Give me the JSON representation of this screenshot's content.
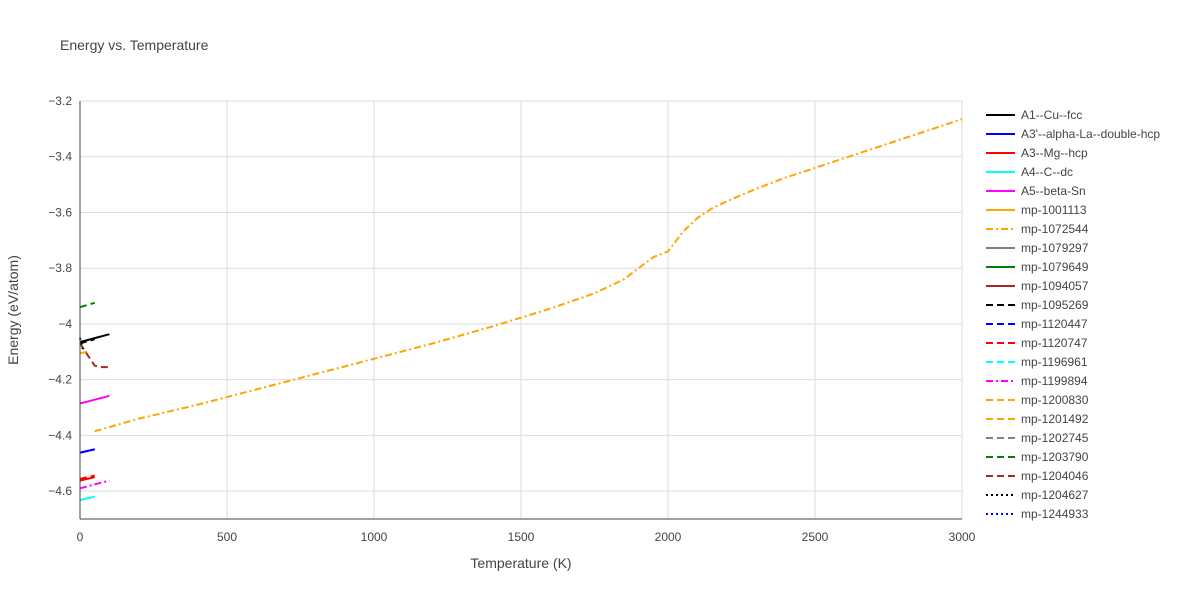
{
  "chart_data": {
    "type": "line",
    "title": "Energy vs. Temperature",
    "xlabel": "Temperature (K)",
    "ylabel": "Energy (eV/atom)",
    "xlim": [
      0,
      3000
    ],
    "ylim": [
      -4.7,
      -3.2
    ],
    "xticks": [
      0,
      500,
      1000,
      1500,
      2000,
      2500,
      3000
    ],
    "xtick_labels": [
      "0",
      "500",
      "1000",
      "1500",
      "2000",
      "2500",
      "3000"
    ],
    "yticks": [
      -3.2,
      -3.4,
      -3.6,
      -3.8,
      -4.0,
      -4.2,
      -4.4,
      -4.6
    ],
    "ytick_labels": [
      "−3.2",
      "−3.4",
      "−3.6",
      "−3.8",
      "−4",
      "−4.2",
      "−4.4",
      "−4.6"
    ],
    "grid": true,
    "legend_position": "right",
    "series": [
      {
        "name": "A1--Cu--fcc",
        "color": "#000000",
        "dash": "solid",
        "x": [
          0,
          25,
          50,
          75,
          100
        ],
        "y": [
          -4.065,
          -4.058,
          -4.051,
          -4.044,
          -4.037
        ]
      },
      {
        "name": "A3'--alpha-La--double-hcp",
        "color": "#0000ff",
        "dash": "solid",
        "x": [
          0,
          25,
          50
        ],
        "y": [
          -4.462,
          -4.456,
          -4.45
        ]
      },
      {
        "name": "A3--Mg--hcp",
        "color": "#ff0000",
        "dash": "solid",
        "x": [
          0,
          25,
          50
        ],
        "y": [
          -4.562,
          -4.556,
          -4.55
        ]
      },
      {
        "name": "A4--C--dc",
        "color": "#00ffff",
        "dash": "solid",
        "x": [
          0,
          25,
          50
        ],
        "y": [
          -4.632,
          -4.626,
          -4.62
        ]
      },
      {
        "name": "A5--beta-Sn",
        "color": "#ff00ff",
        "dash": "solid",
        "x": [
          0,
          25,
          50,
          75,
          100
        ],
        "y": [
          -4.285,
          -4.279,
          -4.272,
          -4.265,
          -4.258
        ]
      },
      {
        "name": "mp-1001113",
        "color": "#ffa500",
        "dash": "solid",
        "x": [
          0,
          25
        ],
        "y": [
          -4.105,
          -4.1
        ]
      },
      {
        "name": "mp-1072544",
        "color": "#ffa500",
        "dash": "dashdot",
        "x": [
          50,
          200,
          400,
          600,
          800,
          1000,
          1200,
          1400,
          1600,
          1750,
          1850,
          1900,
          1950,
          2000,
          2050,
          2100,
          2150,
          2200,
          2300,
          2400,
          2500,
          2600,
          2700,
          2800,
          2900,
          3000
        ],
        "y": [
          -4.385,
          -4.34,
          -4.29,
          -4.235,
          -4.18,
          -4.125,
          -4.07,
          -4.01,
          -3.945,
          -3.89,
          -3.84,
          -3.8,
          -3.76,
          -3.74,
          -3.67,
          -3.62,
          -3.585,
          -3.56,
          -3.515,
          -3.475,
          -3.44,
          -3.405,
          -3.37,
          -3.335,
          -3.3,
          -3.265
        ]
      },
      {
        "name": "mp-1079297",
        "color": "#808080",
        "dash": "solid",
        "x": [],
        "y": []
      },
      {
        "name": "mp-1079649",
        "color": "#008000",
        "dash": "solid",
        "x": [],
        "y": []
      },
      {
        "name": "mp-1094057",
        "color": "#a52a2a",
        "dash": "solid",
        "x": [],
        "y": []
      },
      {
        "name": "mp-1095269",
        "color": "#000000",
        "dash": "dash",
        "x": [
          0,
          25,
          50
        ],
        "y": [
          -4.07,
          -4.062,
          -4.055
        ]
      },
      {
        "name": "mp-1120447",
        "color": "#0000ff",
        "dash": "dash",
        "x": [
          0,
          25,
          50
        ],
        "y": [
          -4.462,
          -4.456,
          -4.45
        ]
      },
      {
        "name": "mp-1120747",
        "color": "#ff0000",
        "dash": "dash",
        "x": [
          0,
          25,
          50
        ],
        "y": [
          -4.556,
          -4.55,
          -4.544
        ]
      },
      {
        "name": "mp-1196961",
        "color": "#00ffff",
        "dash": "dash",
        "x": [],
        "y": []
      },
      {
        "name": "mp-1199894",
        "color": "#ff00ff",
        "dash": "dashdot",
        "x": [
          0,
          25,
          50,
          75,
          100
        ],
        "y": [
          -4.59,
          -4.583,
          -4.576,
          -4.569,
          -4.562
        ]
      },
      {
        "name": "mp-1200830",
        "color": "#ffa500",
        "dash": "dash",
        "x": [],
        "y": []
      },
      {
        "name": "mp-1201492",
        "color": "#ffa500",
        "dash": "dash",
        "x": [],
        "y": []
      },
      {
        "name": "mp-1202745",
        "color": "#808080",
        "dash": "dash",
        "x": [],
        "y": []
      },
      {
        "name": "mp-1203790",
        "color": "#008000",
        "dash": "dash",
        "x": [
          0,
          25,
          50
        ],
        "y": [
          -3.94,
          -3.932,
          -3.924
        ]
      },
      {
        "name": "mp-1204046",
        "color": "#a52a2a",
        "dash": "dash",
        "x": [
          0,
          25,
          50,
          75,
          100
        ],
        "y": [
          -4.07,
          -4.11,
          -4.15,
          -4.155,
          -4.155
        ]
      },
      {
        "name": "mp-1204627",
        "color": "#000000",
        "dash": "dot",
        "x": [
          0,
          10
        ],
        "y": [
          -4.05,
          -4.09
        ]
      },
      {
        "name": "mp-1244933",
        "color": "#0000ff",
        "dash": "dot",
        "x": [],
        "y": []
      }
    ]
  }
}
